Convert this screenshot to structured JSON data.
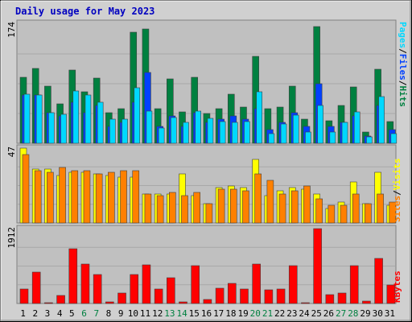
{
  "title": "Daily usage for May 2023",
  "colors": {
    "pages": "#00d8ff",
    "files": "#0040ff",
    "hits": "#008040",
    "visits": "#ffff00",
    "sites": "#ff8000",
    "kbytes": "#ff0000",
    "title": "#0000c0",
    "weekend_label": "#008040",
    "day_label": "#000000",
    "panel_bg": "#c0c0c0",
    "frame_bg": "#d0d0d0"
  },
  "chart_data": [
    {
      "type": "bar",
      "panel": "hits-files-pages",
      "axis_max_label": "174",
      "legend": [
        "Pages",
        "/",
        "Files",
        "/",
        "Hits"
      ],
      "categories": [
        "1",
        "2",
        "3",
        "4",
        "5",
        "6",
        "7",
        "8",
        "9",
        "10",
        "11",
        "12",
        "13",
        "14",
        "15",
        "16",
        "17",
        "18",
        "19",
        "20",
        "21",
        "22",
        "23",
        "24",
        "25",
        "26",
        "27",
        "28",
        "29",
        "30",
        "31"
      ],
      "ylim": [
        0,
        174
      ],
      "series": [
        {
          "name": "Hits",
          "color": "#008040",
          "values": [
            96,
            109,
            84,
            58,
            107,
            75,
            95,
            45,
            51,
            162,
            167,
            50,
            94,
            46,
            96,
            44,
            50,
            72,
            53,
            127,
            50,
            53,
            84,
            35,
            171,
            33,
            55,
            82,
            16,
            108,
            32
          ]
        },
        {
          "name": "Files",
          "color": "#0040ff",
          "values": [
            70,
            70,
            45,
            40,
            60,
            45,
            55,
            25,
            30,
            60,
            104,
            25,
            40,
            25,
            45,
            30,
            35,
            40,
            35,
            50,
            20,
            30,
            45,
            25,
            87,
            25,
            30,
            40,
            10,
            55,
            20
          ]
        },
        {
          "name": "Pages",
          "color": "#00d8ff",
          "values": [
            72,
            70,
            45,
            42,
            76,
            70,
            60,
            35,
            35,
            81,
            47,
            22,
            38,
            30,
            47,
            36,
            32,
            30,
            32,
            75,
            14,
            28,
            41,
            16,
            55,
            17,
            30,
            46,
            9,
            68,
            14
          ]
        }
      ]
    },
    {
      "type": "bar",
      "panel": "visits-sites",
      "axis_max_label": "47",
      "legend": [
        "Sites",
        "/",
        "Visits"
      ],
      "categories": [
        "1",
        "2",
        "3",
        "4",
        "5",
        "6",
        "7",
        "8",
        "9",
        "10",
        "11",
        "12",
        "13",
        "14",
        "15",
        "16",
        "17",
        "18",
        "19",
        "20",
        "21",
        "22",
        "23",
        "24",
        "25",
        "26",
        "27",
        "28",
        "29",
        "30",
        "31"
      ],
      "ylim": [
        0,
        47
      ],
      "series": [
        {
          "name": "Visits",
          "color": "#ffff00",
          "values": [
            47,
            34,
            34,
            30,
            32,
            32,
            31,
            30,
            29,
            29,
            18,
            18,
            18,
            31,
            17,
            12,
            22,
            23,
            22,
            40,
            17,
            20,
            22,
            21,
            18,
            9,
            13,
            26,
            12,
            32,
            11
          ]
        },
        {
          "name": "Sites",
          "color": "#ff8000",
          "values": [
            43,
            33,
            32,
            35,
            33,
            33,
            31,
            32,
            33,
            33,
            18,
            17,
            19,
            17,
            19,
            12,
            21,
            21,
            20,
            31,
            27,
            18,
            20,
            23,
            15,
            11,
            11,
            18,
            12,
            18,
            13
          ]
        }
      ]
    },
    {
      "type": "bar",
      "panel": "kbytes",
      "axis_max_label": "1912",
      "legend": [
        "KBytes"
      ],
      "categories": [
        "1",
        "2",
        "3",
        "4",
        "5",
        "6",
        "7",
        "8",
        "9",
        "10",
        "11",
        "12",
        "13",
        "14",
        "15",
        "16",
        "17",
        "18",
        "19",
        "20",
        "21",
        "22",
        "23",
        "24",
        "25",
        "26",
        "27",
        "28",
        "29",
        "30",
        "31"
      ],
      "ylim": [
        0,
        1912
      ],
      "series": [
        {
          "name": "KBytes",
          "color": "#ff0000",
          "values": [
            360,
            800,
            30,
            200,
            1400,
            1000,
            740,
            40,
            260,
            730,
            980,
            380,
            660,
            40,
            970,
            100,
            400,
            520,
            370,
            1000,
            340,
            360,
            960,
            30,
            1912,
            220,
            260,
            970,
            70,
            1150,
            480
          ]
        }
      ]
    }
  ],
  "weekend_days": [
    "6",
    "7",
    "13",
    "14",
    "20",
    "21",
    "27",
    "28"
  ]
}
